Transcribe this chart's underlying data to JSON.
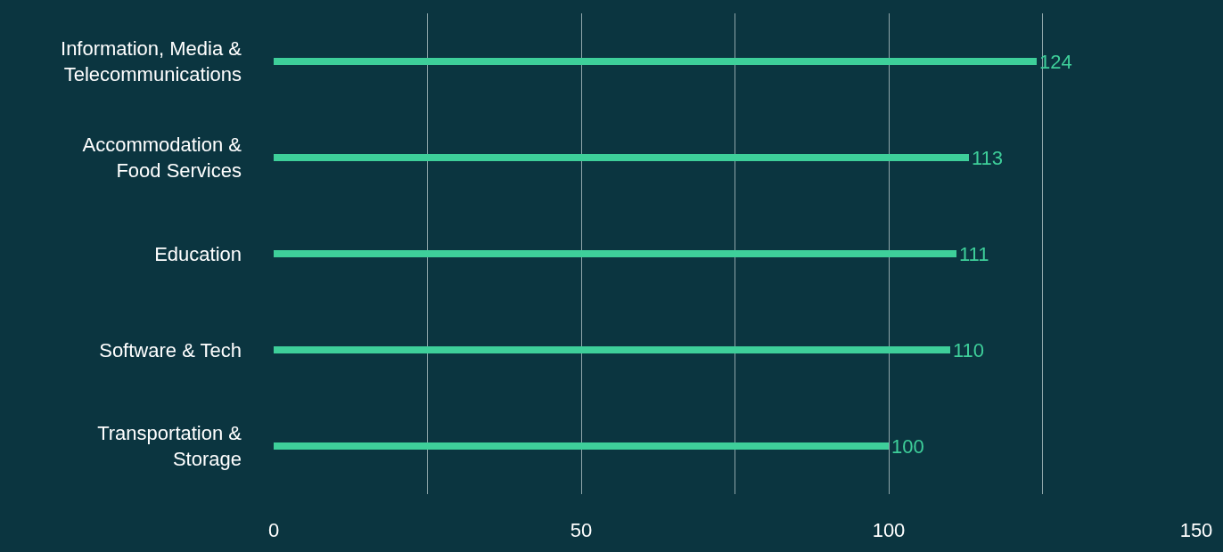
{
  "chart_data": {
    "type": "bar",
    "orientation": "horizontal",
    "categories": [
      "Information, Media &\nTelecommunications",
      "Accommodation &\nFood Services",
      "Education",
      "Software & Tech",
      "Transportation &\nStorage"
    ],
    "values": [
      124,
      113,
      111,
      110,
      100
    ],
    "color": "#3ecf9a",
    "xlim": [
      0,
      150
    ],
    "xticks": [
      0,
      {
        "value": 25,
        "label": null
      },
      50,
      {
        "value": 75,
        "label": null
      },
      100,
      {
        "value": 125,
        "label": null
      },
      150
    ],
    "grid": "x",
    "data_labels": true,
    "legend": false
  }
}
